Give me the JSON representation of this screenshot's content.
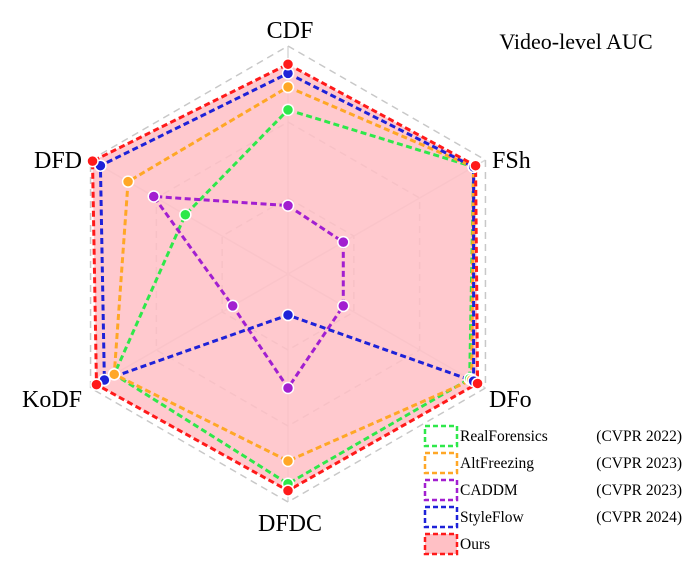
{
  "chart_data": {
    "type": "radar",
    "title": "Video-level AUC",
    "axes": [
      "CDF",
      "FSh",
      "DFo",
      "DFDC",
      "KoDF",
      "DFD"
    ],
    "range": [
      0,
      1
    ],
    "grid_levels": 3,
    "series": [
      {
        "name": "RealForensics",
        "venue": "(CVPR 2022)",
        "color": "#2ee84a",
        "values": [
          0.72,
          0.94,
          0.92,
          0.92,
          0.88,
          0.52
        ],
        "fill": false
      },
      {
        "name": "AltFreezing",
        "venue": "(CVPR 2023)",
        "color": "#ffa726",
        "values": [
          0.82,
          0.94,
          0.93,
          0.82,
          0.88,
          0.81
        ],
        "fill": false
      },
      {
        "name": "CADDM",
        "venue": "(CVPR 2023)",
        "color": "#a21fd0",
        "values": [
          0.3,
          0.28,
          0.28,
          0.5,
          0.28,
          0.68
        ],
        "fill": false
      },
      {
        "name": "StyleFlow",
        "venue": "(CVPR 2024)",
        "color": "#1e22d8",
        "values": [
          0.88,
          0.94,
          0.94,
          0.18,
          0.93,
          0.95
        ],
        "fill": false
      },
      {
        "name": "Ours",
        "venue": "",
        "color": "#ff1a1a",
        "values": [
          0.92,
          0.95,
          0.96,
          0.95,
          0.97,
          0.99
        ],
        "fill": true,
        "fill_color": "#ffc0c5"
      }
    ],
    "legend_position": "bottom-right",
    "grid": true
  }
}
